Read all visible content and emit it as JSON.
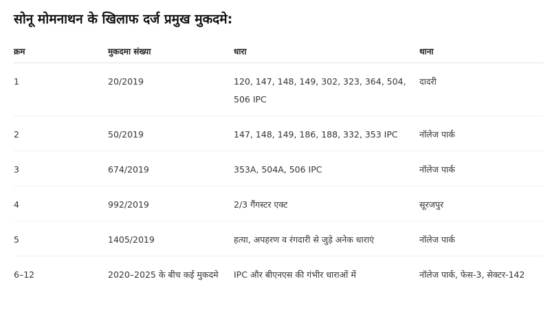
{
  "title": "सोनू मोमनाथन के खिलाफ दर्ज प्रमुख मुकदमे:",
  "headers": [
    "क्रम",
    "मुकदमा संख्या",
    "धारा",
    "थाना"
  ],
  "rows": [
    [
      "1",
      "20/2019",
      "120, 147, 148, 149, 302, 323, 364, 504, 506 IPC",
      "दादरी"
    ],
    [
      "2",
      "50/2019",
      "147, 148, 149, 186, 188, 332, 353 IPC",
      "नॉलेज पार्क"
    ],
    [
      "3",
      "674/2019",
      "353A, 504A, 506 IPC",
      "नॉलेज पार्क"
    ],
    [
      "4",
      "992/2019",
      "2/3 गैंगस्टर एक्ट",
      "सूरजपुर"
    ],
    [
      "5",
      "1405/2019",
      "हत्या, अपहरण व रंगदारी से जुड़े अनेक धाराएं",
      "नॉलेज पार्क"
    ],
    [
      "6–12",
      "2020–2025 के बीच कई मुकदमे",
      "IPC और बीएनएस की गंभीर धाराओं में",
      "नॉलेज पार्क, फेस-3, सेक्टर-142"
    ]
  ]
}
